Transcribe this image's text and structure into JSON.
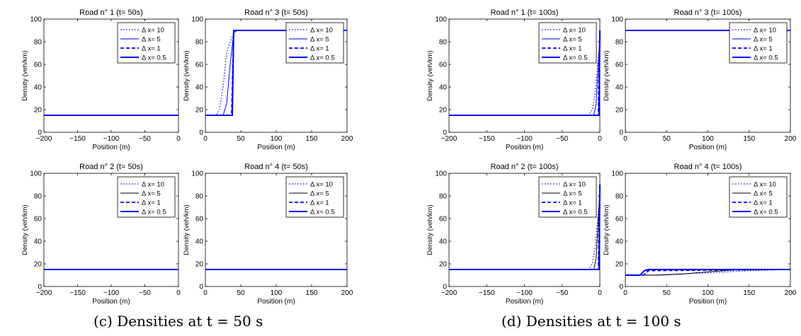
{
  "captions": {
    "c": "(c) Densities at t = 50 s",
    "d": "(d) Densities at t = 100 s"
  },
  "colors": {
    "series": "#0000ff",
    "axis": "#000000",
    "background": "#ffffff"
  },
  "chart_data": [
    {
      "type": "line",
      "title": "Road n° 1 (t= 50s)",
      "xlabel": "Position (m)",
      "ylabel": "Density (veh/km)",
      "xlim": [
        -200,
        0
      ],
      "ylim": [
        0,
        100
      ],
      "xticks": [
        "−200",
        "−150",
        "−100",
        "−50",
        "0"
      ],
      "xtick_values": [
        -200,
        -150,
        -100,
        -50,
        0
      ],
      "yticks": [
        "0",
        "20",
        "40",
        "60",
        "80",
        "100"
      ],
      "legend": {
        "placement": "top-right",
        "labels": [
          "Δ x= 10",
          "Δ x= 5",
          "Δ x= 1",
          "Δ x= 0.5"
        ]
      },
      "series": [
        {
          "style": "dotted",
          "x": [
            -200,
            0
          ],
          "y": [
            15,
            15
          ]
        },
        {
          "style": "solid-thin",
          "x": [
            -200,
            0
          ],
          "y": [
            15,
            15
          ]
        },
        {
          "style": "dashed",
          "x": [
            -200,
            0
          ],
          "y": [
            15,
            15
          ]
        },
        {
          "style": "solid-thick",
          "x": [
            -200,
            0
          ],
          "y": [
            15,
            15
          ]
        }
      ]
    },
    {
      "type": "line",
      "title": "Road n° 3 (t= 50s)",
      "xlabel": "Position (m)",
      "ylabel": "Density (veh/km)",
      "xlim": [
        0,
        200
      ],
      "ylim": [
        0,
        100
      ],
      "xticks": [
        "0",
        "50",
        "100",
        "150",
        "200"
      ],
      "xtick_values": [
        0,
        50,
        100,
        150,
        200
      ],
      "yticks": [
        "0",
        "20",
        "40",
        "60",
        "80",
        "100"
      ],
      "legend": {
        "placement": "top-right",
        "labels": [
          "Δ x= 10",
          "Δ x= 5",
          "Δ x= 1",
          "Δ x= 0.5"
        ]
      },
      "series": [
        {
          "style": "dotted",
          "x": [
            0,
            15,
            20,
            25,
            30,
            35,
            40,
            45,
            200
          ],
          "y": [
            15,
            15,
            20,
            40,
            70,
            80,
            88,
            90,
            90
          ]
        },
        {
          "style": "solid-thin",
          "x": [
            0,
            25,
            30,
            35,
            40,
            45,
            200
          ],
          "y": [
            15,
            15,
            25,
            60,
            88,
            90,
            90
          ]
        },
        {
          "style": "dashed",
          "x": [
            0,
            37,
            40,
            200
          ],
          "y": [
            15,
            15,
            90,
            90
          ]
        },
        {
          "style": "solid-thick",
          "x": [
            0,
            38,
            40,
            200
          ],
          "y": [
            15,
            15,
            90,
            90
          ]
        }
      ]
    },
    {
      "type": "line",
      "title": "Road n° 2 (t= 50s)",
      "xlabel": "Position (m)",
      "ylabel": "Density (veh/km)",
      "xlim": [
        -200,
        0
      ],
      "ylim": [
        0,
        100
      ],
      "xticks": [
        "−200",
        "−150",
        "−100",
        "−50",
        "0"
      ],
      "xtick_values": [
        -200,
        -150,
        -100,
        -50,
        0
      ],
      "yticks": [
        "0",
        "20",
        "40",
        "60",
        "80",
        "100"
      ],
      "legend": {
        "placement": "top-right",
        "labels": [
          "Δ x= 10",
          "Δ x= 5",
          "Δ x= 1",
          "Δ x= 0.5"
        ]
      },
      "series": [
        {
          "style": "dotted",
          "x": [
            -200,
            0
          ],
          "y": [
            15,
            15
          ]
        },
        {
          "style": "solid-thin-black",
          "x": [
            -200,
            0
          ],
          "y": [
            15,
            15
          ]
        },
        {
          "style": "dashed",
          "x": [
            -200,
            0
          ],
          "y": [
            15,
            15
          ]
        },
        {
          "style": "solid-thick",
          "x": [
            -200,
            0
          ],
          "y": [
            15,
            15
          ]
        }
      ]
    },
    {
      "type": "line",
      "title": "Road n° 4 (t= 50s)",
      "xlabel": "Position (m)",
      "ylabel": "Density (veh/km)",
      "xlim": [
        0,
        200
      ],
      "ylim": [
        0,
        100
      ],
      "xticks": [
        "0",
        "50",
        "100",
        "150",
        "200"
      ],
      "xtick_values": [
        0,
        50,
        100,
        150,
        200
      ],
      "yticks": [
        "0",
        "20",
        "40",
        "60",
        "80",
        "100"
      ],
      "legend": {
        "placement": "top-right",
        "labels": [
          "Δ x= 10",
          "Δ x= 5",
          "Δ x= 1",
          "Δ x= 0.5"
        ]
      },
      "series": [
        {
          "style": "dotted",
          "x": [
            0,
            200
          ],
          "y": [
            15,
            15
          ]
        },
        {
          "style": "solid-thin-black",
          "x": [
            0,
            200
          ],
          "y": [
            15,
            15
          ]
        },
        {
          "style": "dashed",
          "x": [
            0,
            200
          ],
          "y": [
            15,
            15
          ]
        },
        {
          "style": "solid-thick",
          "x": [
            0,
            200
          ],
          "y": [
            15,
            15
          ]
        }
      ]
    },
    {
      "type": "line",
      "title": "Road n° 1 (t= 100s)",
      "xlabel": "Position (m)",
      "ylabel": "Density (veh/km)",
      "xlim": [
        -200,
        0
      ],
      "ylim": [
        0,
        100
      ],
      "xticks": [
        "−200",
        "−150",
        "−100",
        "−50",
        "0"
      ],
      "xtick_values": [
        -200,
        -150,
        -100,
        -50,
        0
      ],
      "yticks": [
        "0",
        "20",
        "40",
        "60",
        "80",
        "100"
      ],
      "legend": {
        "placement": "top-right",
        "labels": [
          "Δ x= 10",
          "Δ x= 5",
          "Δ x= 1",
          "Δ x= 0.5"
        ]
      },
      "series": [
        {
          "style": "dotted",
          "x": [
            -200,
            -15,
            -10,
            -6,
            -3,
            0
          ],
          "y": [
            15,
            15,
            20,
            35,
            60,
            80
          ]
        },
        {
          "style": "solid-thin",
          "x": [
            -200,
            -8,
            -5,
            -2,
            0
          ],
          "y": [
            15,
            15,
            25,
            60,
            85
          ]
        },
        {
          "style": "dashed",
          "x": [
            -200,
            -2,
            -1,
            0
          ],
          "y": [
            15,
            15,
            60,
            88
          ]
        },
        {
          "style": "solid-thick",
          "x": [
            -200,
            -1,
            0
          ],
          "y": [
            15,
            15,
            90
          ]
        }
      ]
    },
    {
      "type": "line",
      "title": "Road n° 3 (t= 100s)",
      "xlabel": "Position (m)",
      "ylabel": "Density (veh/km)",
      "xlim": [
        0,
        200
      ],
      "ylim": [
        0,
        100
      ],
      "xticks": [
        "0",
        "50",
        "100",
        "150",
        "200"
      ],
      "xtick_values": [
        0,
        50,
        100,
        150,
        200
      ],
      "yticks": [
        "0",
        "20",
        "40",
        "60",
        "80",
        "100"
      ],
      "legend": {
        "placement": "top-right",
        "labels": [
          "Δ x= 10",
          "Δ x= 5",
          "Δ x= 1",
          "Δ x= 0.5"
        ]
      },
      "series": [
        {
          "style": "dotted",
          "x": [
            0,
            200
          ],
          "y": [
            90,
            90
          ]
        },
        {
          "style": "solid-thin",
          "x": [
            0,
            200
          ],
          "y": [
            90,
            90
          ]
        },
        {
          "style": "dashed",
          "x": [
            0,
            200
          ],
          "y": [
            90,
            90
          ]
        },
        {
          "style": "solid-thick",
          "x": [
            0,
            200
          ],
          "y": [
            90,
            90
          ]
        }
      ]
    },
    {
      "type": "line",
      "title": "Road n° 2 (t= 100s)",
      "xlabel": "Position (m)",
      "ylabel": "Density (veh/km)",
      "xlim": [
        -200,
        0
      ],
      "ylim": [
        0,
        100
      ],
      "xticks": [
        "−200",
        "−150",
        "−100",
        "−50",
        "0"
      ],
      "xtick_values": [
        -200,
        -150,
        -100,
        -50,
        0
      ],
      "yticks": [
        "0",
        "20",
        "40",
        "60",
        "80",
        "100"
      ],
      "legend": {
        "placement": "top-right",
        "labels": [
          "Δ x= 10",
          "Δ x= 5",
          "Δ x= 1",
          "Δ x= 0.5"
        ]
      },
      "series": [
        {
          "style": "dotted",
          "x": [
            -200,
            -15,
            -10,
            -6,
            -3,
            0
          ],
          "y": [
            15,
            15,
            20,
            35,
            60,
            80
          ]
        },
        {
          "style": "solid-thin-black",
          "x": [
            -200,
            -8,
            -5,
            -2,
            0
          ],
          "y": [
            15,
            15,
            25,
            60,
            85
          ]
        },
        {
          "style": "dashed",
          "x": [
            -200,
            -2,
            -1,
            0
          ],
          "y": [
            15,
            15,
            60,
            88
          ]
        },
        {
          "style": "solid-thick",
          "x": [
            -200,
            -1,
            0
          ],
          "y": [
            15,
            15,
            90
          ]
        }
      ]
    },
    {
      "type": "line",
      "title": "Road n° 4 (t= 100s)",
      "xlabel": "Position (m)",
      "ylabel": "Density (veh/km)",
      "xlim": [
        0,
        200
      ],
      "ylim": [
        0,
        100
      ],
      "xticks": [
        "0",
        "50",
        "100",
        "150",
        "200"
      ],
      "xtick_values": [
        0,
        50,
        100,
        150,
        200
      ],
      "yticks": [
        "0",
        "20",
        "40",
        "60",
        "80",
        "100"
      ],
      "legend": {
        "placement": "top-right",
        "labels": [
          "Δ x= 10",
          "Δ x= 5",
          "Δ x= 1",
          "Δ x= 0.5"
        ]
      },
      "series": [
        {
          "style": "dotted",
          "x": [
            0,
            30,
            60,
            100,
            150,
            200
          ],
          "y": [
            10,
            10,
            11,
            12,
            14,
            15
          ]
        },
        {
          "style": "solid-thin-black",
          "x": [
            0,
            40,
            70,
            100,
            140,
            200
          ],
          "y": [
            10,
            10,
            11,
            13,
            15,
            15
          ]
        },
        {
          "style": "dashed",
          "x": [
            0,
            22,
            28,
            200
          ],
          "y": [
            10,
            10,
            14,
            15
          ]
        },
        {
          "style": "solid-thick",
          "x": [
            0,
            18,
            23,
            28,
            200
          ],
          "y": [
            10,
            10,
            14,
            15,
            15
          ]
        }
      ]
    }
  ]
}
